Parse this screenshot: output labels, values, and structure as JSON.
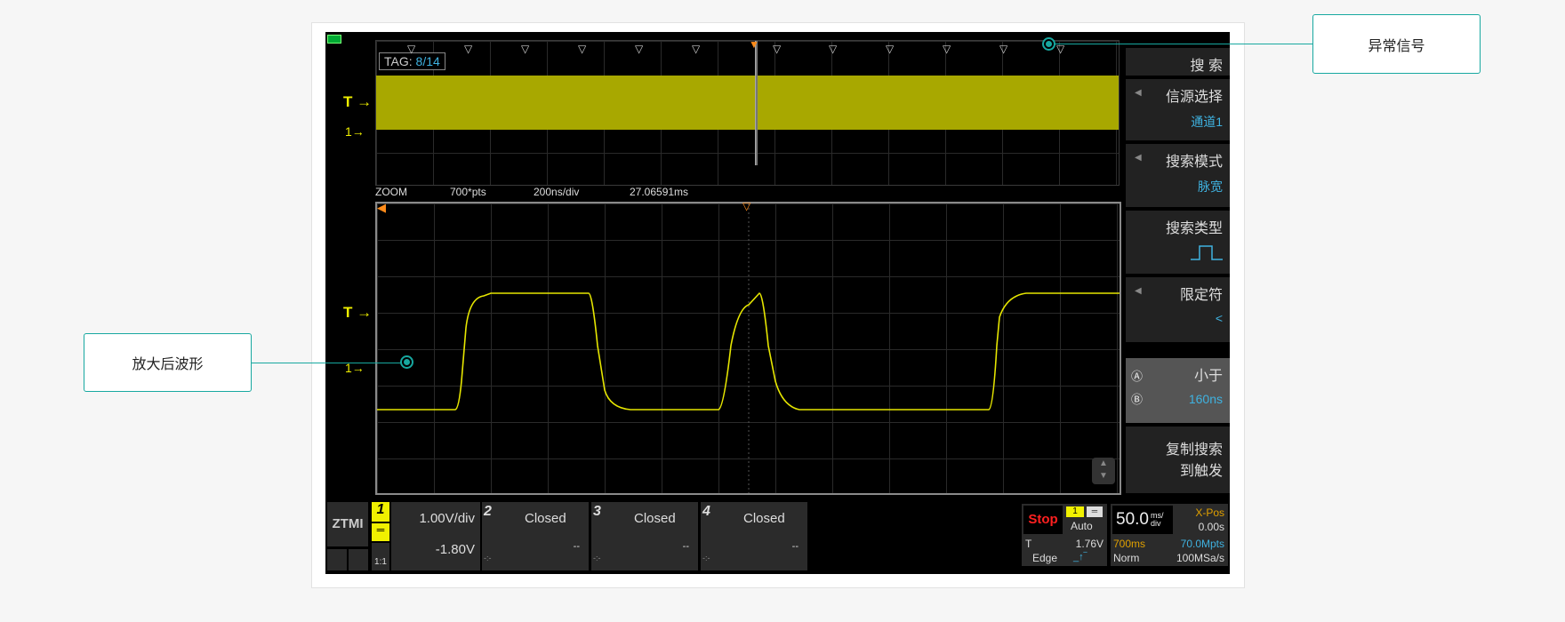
{
  "callouts": {
    "abnormal": "异常信号",
    "zoomed": "放大后波形"
  },
  "overview": {
    "tag_label": "TAG:",
    "tag_value": "8/14",
    "trigger_marker": "T",
    "channel_marker": "1"
  },
  "zoom_info": {
    "mode": "ZOOM",
    "points": "700*pts",
    "timebase": "200ns/div",
    "position": "27.06591ms"
  },
  "menu": {
    "title": "搜 索",
    "items": [
      {
        "label": "信源选择",
        "value": "通道1"
      },
      {
        "label": "搜索模式",
        "value": "脉宽"
      },
      {
        "label": "搜索类型",
        "value": "pulse-icon"
      },
      {
        "label": "限定符",
        "value": "<"
      },
      {
        "label": "小于",
        "value": "160ns"
      },
      {
        "label": "复制搜索",
        "label2": "到触发"
      }
    ]
  },
  "bottom": {
    "logo": "ZTMI",
    "ch1": {
      "num": "1",
      "scale": "1.00V/div",
      "offset": "-1.80V",
      "probe": "1:1"
    },
    "channels": [
      {
        "num": "2",
        "status": "Closed",
        "val": "--",
        "sub": "-:-"
      },
      {
        "num": "3",
        "status": "Closed",
        "val": "--",
        "sub": "-:-"
      },
      {
        "num": "4",
        "status": "Closed",
        "val": "--",
        "sub": "-:-"
      }
    ],
    "trigger": {
      "state": "Stop",
      "source": "1",
      "mode": "Auto",
      "label": "T",
      "level": "1.76V",
      "type": "Edge"
    },
    "time": {
      "scale": "50.0",
      "unit_top": "ms/",
      "unit_bot": "div",
      "xpos_label": "X-Pos",
      "xpos": "0.00s",
      "span": "700ms",
      "depth": "70.0Mpts",
      "acq": "Norm",
      "rate": "100MSa/s"
    }
  },
  "colors": {
    "ch1": "#f0f000",
    "accent": "#17a8a0",
    "search": "#3fb2e0",
    "stop": "#ff2020",
    "orange": "#ff8c1a"
  }
}
